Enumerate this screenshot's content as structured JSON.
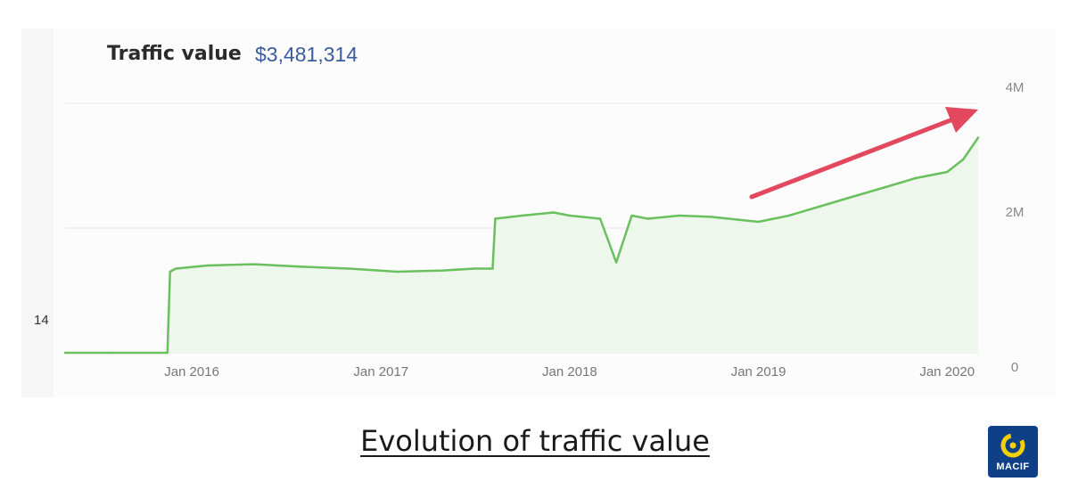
{
  "header": {
    "label": "Traffic value",
    "value": "$3,481,314"
  },
  "side_number": "14",
  "caption": "Evolution of traffic value",
  "logo": {
    "text": "MACIF"
  },
  "colors": {
    "line": "#6abf5e",
    "fill": "#eef7ec",
    "arrow": "#e2485e",
    "grid": "#e6e6e6",
    "value": "#3a5c9c"
  },
  "chart_data": {
    "type": "area",
    "x_ticks": [
      "Jan 2016",
      "Jan 2017",
      "Jan 2018",
      "Jan 2019",
      "Jan 2020"
    ],
    "y_ticks": [
      "0",
      "2M",
      "4M"
    ],
    "ylim": [
      0,
      4000000
    ],
    "xlim": [
      "2015-05",
      "2020-03"
    ],
    "grid": "horizontal",
    "annotation": "upward red arrow indicating growth",
    "series": [
      {
        "x": [
          "2015-05",
          "2015-08",
          "2015-11-15",
          "2015-11-20",
          "2015-12",
          "2016-02",
          "2016-05",
          "2016-08",
          "2016-11",
          "2017-02",
          "2017-05",
          "2017-07",
          "2017-08-05",
          "2017-08-10",
          "2017-10",
          "2017-12",
          "2018-01",
          "2018-03",
          "2018-04",
          "2018-05",
          "2018-06",
          "2018-08",
          "2018-10",
          "2019-01",
          "2019-03",
          "2019-05",
          "2019-07",
          "2019-09",
          "2019-11",
          "2020-01",
          "2020-02",
          "2020-03"
        ],
        "values": [
          0,
          0,
          0,
          1300000,
          1350000,
          1400000,
          1420000,
          1380000,
          1350000,
          1300000,
          1320000,
          1350000,
          1350000,
          2150000,
          2200000,
          2250000,
          2200000,
          2150000,
          1450000,
          2200000,
          2150000,
          2200000,
          2180000,
          2100000,
          2200000,
          2350000,
          2500000,
          2650000,
          2800000,
          2900000,
          3100000,
          3450000
        ]
      }
    ]
  }
}
